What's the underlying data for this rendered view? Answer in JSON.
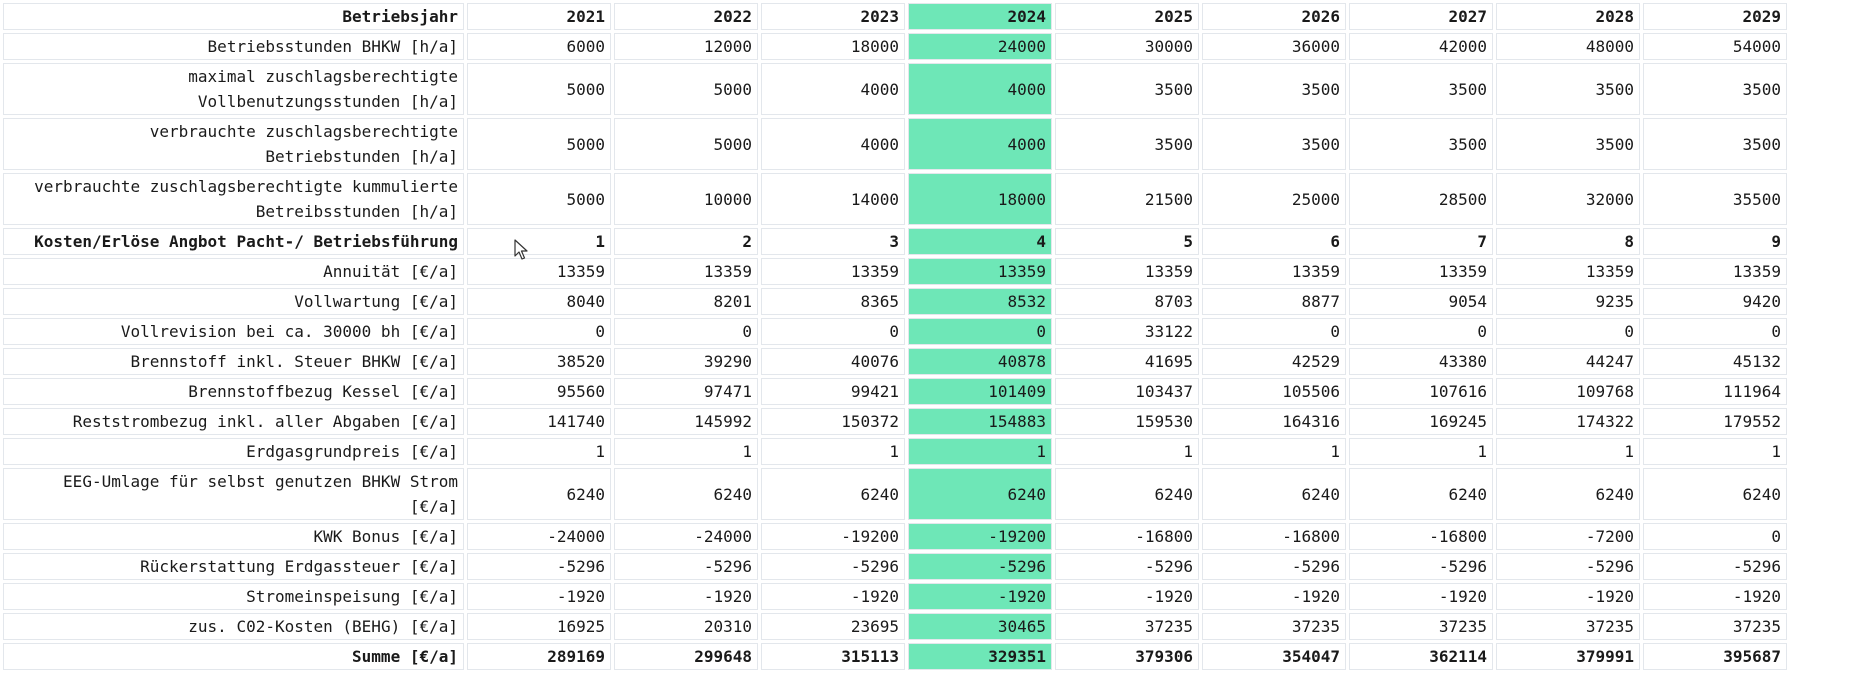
{
  "table": {
    "highlight_column_index": 3,
    "highlight_color": "#6ee7b7",
    "rows": [
      {
        "label": "Betriebsjahr",
        "bold": true,
        "cells": [
          "2021",
          "2022",
          "2023",
          "2024",
          "2025",
          "2026",
          "2027",
          "2028",
          "2029"
        ]
      },
      {
        "label": "Betriebsstunden BHKW [h/a]",
        "cells": [
          "6000",
          "12000",
          "18000",
          "24000",
          "30000",
          "36000",
          "42000",
          "48000",
          "54000"
        ]
      },
      {
        "label": "maximal zuschlagsberechtigte Vollbenutzungsstunden [h/a]",
        "cells": [
          "5000",
          "5000",
          "4000",
          "4000",
          "3500",
          "3500",
          "3500",
          "3500",
          "3500"
        ]
      },
      {
        "label": "verbrauchte zuschlagsberechtigte Betriebstunden [h/a]",
        "cells": [
          "5000",
          "5000",
          "4000",
          "4000",
          "3500",
          "3500",
          "3500",
          "3500",
          "3500"
        ]
      },
      {
        "label": "verbrauchte zuschlagsberechtigte kummulierte Betreibsstunden [h/a]",
        "cells": [
          "5000",
          "10000",
          "14000",
          "18000",
          "21500",
          "25000",
          "28500",
          "32000",
          "35500"
        ]
      },
      {
        "label": "Kosten/Erlöse Angbot Pacht-/ Betriebsführung",
        "bold": true,
        "cells": [
          "1",
          "2",
          "3",
          "4",
          "5",
          "6",
          "7",
          "8",
          "9"
        ]
      },
      {
        "label": "Annuität [€/a]",
        "cells": [
          "13359",
          "13359",
          "13359",
          "13359",
          "13359",
          "13359",
          "13359",
          "13359",
          "13359"
        ]
      },
      {
        "label": "Vollwartung [€/a]",
        "cells": [
          "8040",
          "8201",
          "8365",
          "8532",
          "8703",
          "8877",
          "9054",
          "9235",
          "9420"
        ]
      },
      {
        "label": "Vollrevision bei ca. 30000 bh [€/a]",
        "cells": [
          "0",
          "0",
          "0",
          "0",
          "33122",
          "0",
          "0",
          "0",
          "0"
        ]
      },
      {
        "label": "Brennstoff inkl. Steuer BHKW [€/a]",
        "cells": [
          "38520",
          "39290",
          "40076",
          "40878",
          "41695",
          "42529",
          "43380",
          "44247",
          "45132"
        ]
      },
      {
        "label": "Brennstoffbezug Kessel [€/a]",
        "cells": [
          "95560",
          "97471",
          "99421",
          "101409",
          "103437",
          "105506",
          "107616",
          "109768",
          "111964"
        ]
      },
      {
        "label": "Reststrombezug inkl. aller Abgaben [€/a]",
        "cells": [
          "141740",
          "145992",
          "150372",
          "154883",
          "159530",
          "164316",
          "169245",
          "174322",
          "179552"
        ]
      },
      {
        "label": "Erdgasgrundpreis [€/a]",
        "cells": [
          "1",
          "1",
          "1",
          "1",
          "1",
          "1",
          "1",
          "1",
          "1"
        ]
      },
      {
        "label": "EEG-Umlage für selbst genutzen BHKW Strom [€/a]",
        "cells": [
          "6240",
          "6240",
          "6240",
          "6240",
          "6240",
          "6240",
          "6240",
          "6240",
          "6240"
        ]
      },
      {
        "label": "KWK Bonus [€/a]",
        "cells": [
          "-24000",
          "-24000",
          "-19200",
          "-19200",
          "-16800",
          "-16800",
          "-16800",
          "-7200",
          "0"
        ]
      },
      {
        "label": "Rückerstattung Erdgassteuer [€/a]",
        "cells": [
          "-5296",
          "-5296",
          "-5296",
          "-5296",
          "-5296",
          "-5296",
          "-5296",
          "-5296",
          "-5296"
        ]
      },
      {
        "label": "Stromeinspeisung [€/a]",
        "cells": [
          "-1920",
          "-1920",
          "-1920",
          "-1920",
          "-1920",
          "-1920",
          "-1920",
          "-1920",
          "-1920"
        ]
      },
      {
        "label": "zus. C02-Kosten (BEHG) [€/a]",
        "cells": [
          "16925",
          "20310",
          "23695",
          "30465",
          "37235",
          "37235",
          "37235",
          "37235",
          "37235"
        ]
      },
      {
        "label": "Summe [€/a]",
        "bold": true,
        "cells": [
          "289169",
          "299648",
          "315113",
          "329351",
          "379306",
          "354047",
          "362114",
          "379991",
          "395687"
        ]
      }
    ]
  },
  "cursor": {
    "icon": "mouse-pointer-icon"
  }
}
